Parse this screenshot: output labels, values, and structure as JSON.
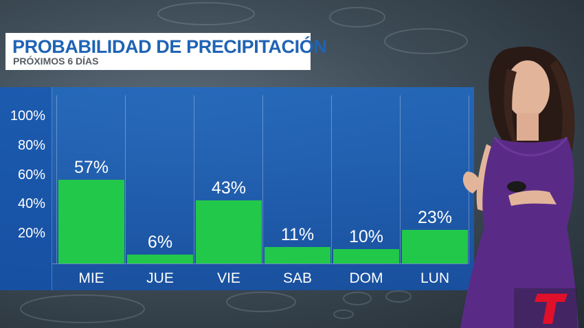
{
  "header": {
    "title": "PROBABILIDAD DE PRECIPITACIÓN",
    "subtitle": "PRÓXIMOS 6 DÍAS"
  },
  "chart_data": {
    "type": "bar",
    "title": "PROBABILIDAD DE PRECIPITACIÓN",
    "subtitle": "PRÓXIMOS 6 DÍAS",
    "categories": [
      "MIE",
      "JUE",
      "VIE",
      "SAB",
      "DOM",
      "LUN"
    ],
    "values": [
      57,
      6,
      43,
      11,
      10,
      23
    ],
    "value_labels": [
      "57%",
      "6%",
      "43%",
      "11%",
      "10%",
      "23%"
    ],
    "yticks": [
      "100%",
      "80%",
      "60%",
      "40%",
      "20%"
    ],
    "ylim": [
      0,
      100
    ],
    "grid": true,
    "bar_color": "#22c84a"
  },
  "colors": {
    "title_blue": "#1f63b4",
    "panel_blue": "#2168c2",
    "logo_red": "#e0102a"
  },
  "logo": {
    "icon": "telemundo-t-logo"
  }
}
